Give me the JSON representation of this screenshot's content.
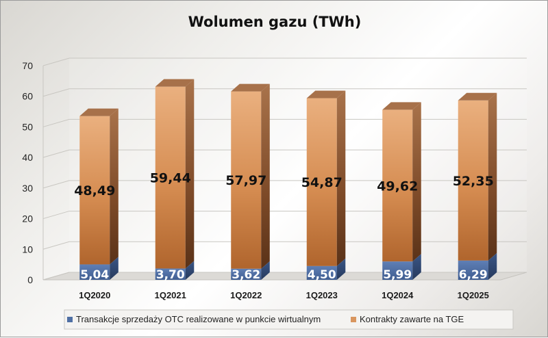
{
  "chart_data": {
    "type": "bar",
    "stacked": true,
    "title": "Wolumen gazu (TWh)",
    "categories": [
      "1Q2020",
      "1Q2021",
      "1Q2022",
      "1Q2023",
      "1Q2024",
      "1Q2025"
    ],
    "series": [
      {
        "name": "Transakcje sprzedaży OTC realizowane w punkcie wirtualnym",
        "values": [
          5.04,
          3.7,
          3.62,
          4.5,
          5.99,
          6.29
        ],
        "labels": [
          "5,04",
          "3,70",
          "3,62",
          "4,50",
          "5,99",
          "6,29"
        ],
        "color": "#4f6fa4"
      },
      {
        "name": "Kontrakty zawarte na TGE",
        "values": [
          48.49,
          59.44,
          57.97,
          54.87,
          49.62,
          52.35
        ],
        "labels": [
          "48,49",
          "59,44",
          "57,97",
          "54,87",
          "49,62",
          "52,35"
        ],
        "color": "#d9965f"
      }
    ],
    "ylim": [
      0,
      70
    ],
    "yticks": [
      0,
      10,
      20,
      30,
      40,
      50,
      60,
      70
    ],
    "grid": true,
    "legend_position": "bottom"
  }
}
